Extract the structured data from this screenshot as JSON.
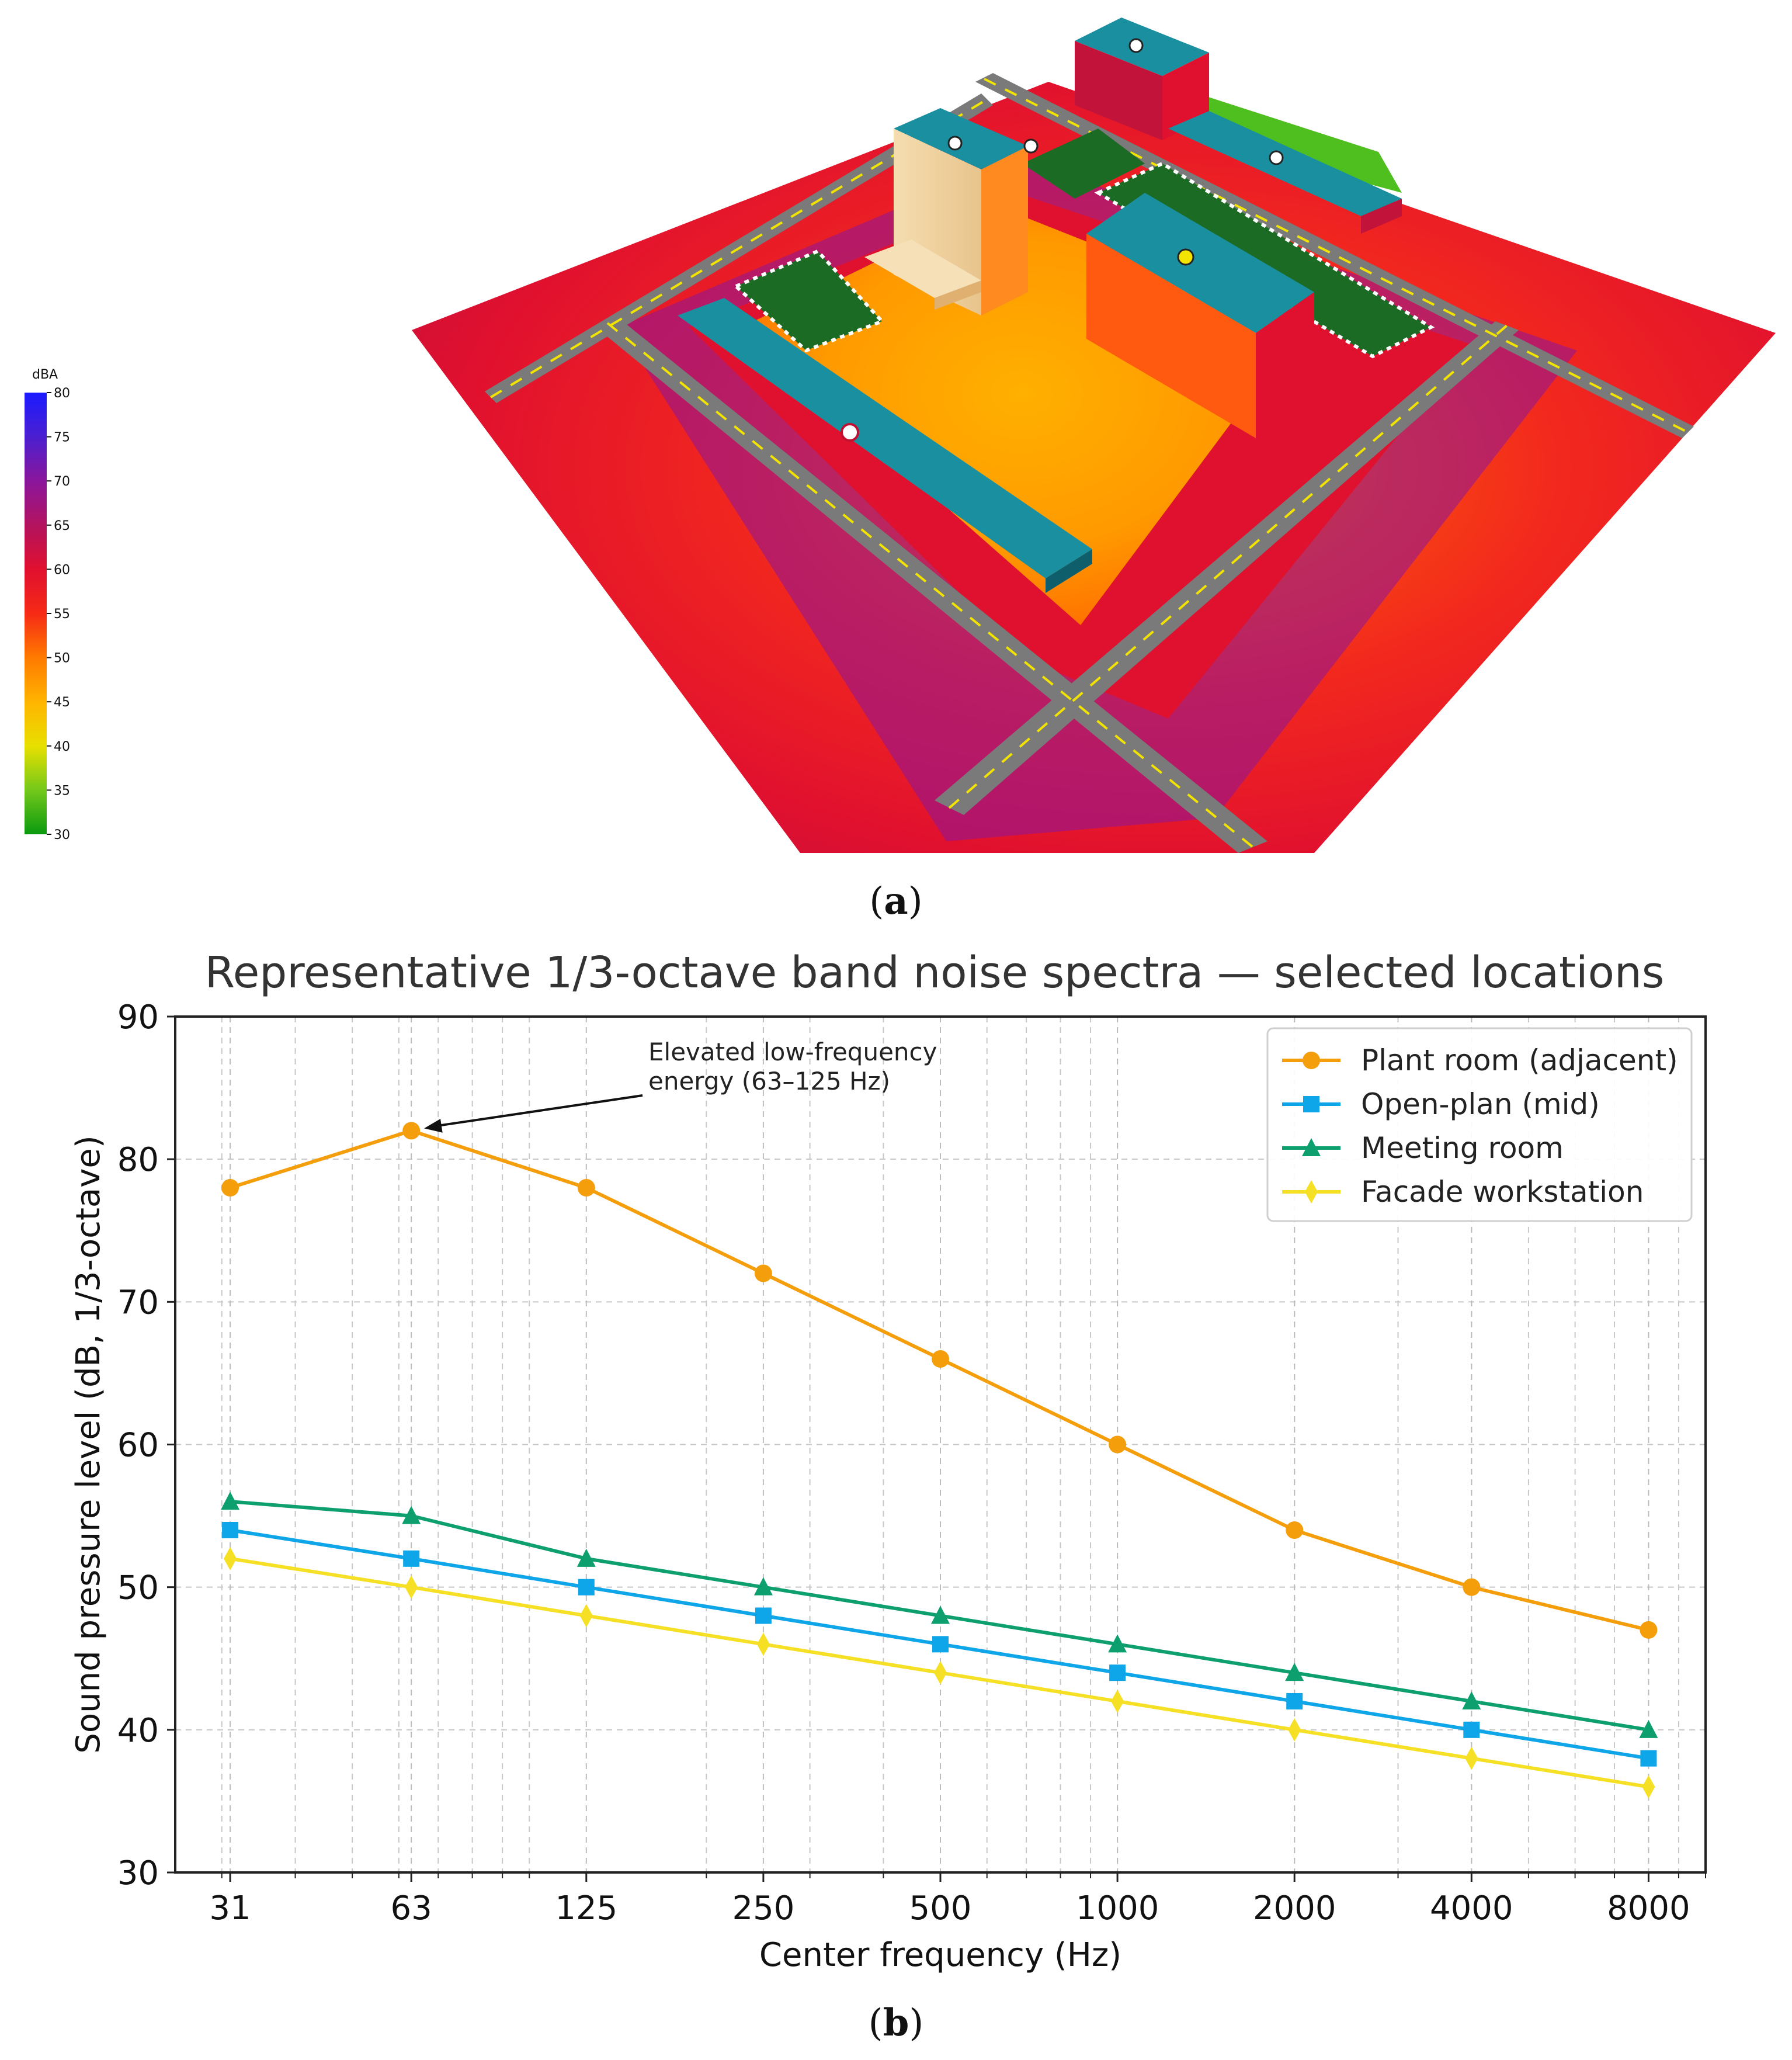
{
  "panel_a": {
    "colorbar": {
      "unit": "dBA",
      "ticks": [
        "80",
        "75",
        "70",
        "65",
        "60",
        "55",
        "50",
        "45",
        "40",
        "35",
        "30"
      ],
      "stops": [
        "#1a1aff",
        "#4b1fd0",
        "#8a169c",
        "#b3135f",
        "#e0102f",
        "#f62a15",
        "#ff7a00",
        "#ffb400",
        "#e8e000",
        "#74c81a",
        "#0a9a10"
      ]
    },
    "caption_prefix": "(",
    "caption_letter": "a",
    "caption_suffix": ")",
    "colors": {
      "road": "#7a7a7a",
      "road_line": "#f3e400",
      "roof": "#1a8fa0",
      "ground_hot": "#e8102a",
      "ground_warm": "#ff8c00",
      "ground_purple": "#8a169c",
      "park": "#1b6b24"
    }
  },
  "panel_b": {
    "caption_prefix": "(",
    "caption_letter": "b",
    "caption_suffix": ")"
  },
  "chart_data": {
    "type": "line",
    "title": "Representative 1/3-octave band noise spectra — selected locations",
    "xlabel": "Center frequency (Hz)",
    "ylabel": "Sound pressure level (dB, 1/3-octave)",
    "x_scale": "log",
    "x": [
      31,
      63,
      125,
      250,
      500,
      1000,
      2000,
      4000,
      8000
    ],
    "x_tick_labels": [
      "31",
      "63",
      "125",
      "250",
      "500",
      "1000",
      "2000",
      "4000",
      "8000"
    ],
    "ylim": [
      30,
      90
    ],
    "y_ticks": [
      "30",
      "40",
      "50",
      "60",
      "70",
      "80",
      "90"
    ],
    "grid": true,
    "legend_position": "top-right",
    "series": [
      {
        "name": "Plant room (adjacent)",
        "color": "#f59e0b",
        "marker": "circle",
        "values": [
          78,
          82,
          78,
          72,
          66,
          60,
          54,
          50,
          47
        ]
      },
      {
        "name": "Open-plan (mid)",
        "color": "#0ea5e9",
        "marker": "square",
        "values": [
          54,
          52,
          50,
          48,
          46,
          44,
          42,
          40,
          38
        ]
      },
      {
        "name": "Meeting room",
        "color": "#0e9f6e",
        "marker": "triangle",
        "values": [
          56,
          55,
          52,
          50,
          48,
          46,
          44,
          42,
          40
        ]
      },
      {
        "name": "Facade workstation",
        "color": "#f5e025",
        "marker": "diamond",
        "values": [
          52,
          50,
          48,
          46,
          44,
          42,
          40,
          38,
          36
        ]
      }
    ],
    "annotation": {
      "line1": "Elevated low-frequency",
      "line2": "energy (63–125 Hz)",
      "x": 63,
      "y": 82
    }
  }
}
